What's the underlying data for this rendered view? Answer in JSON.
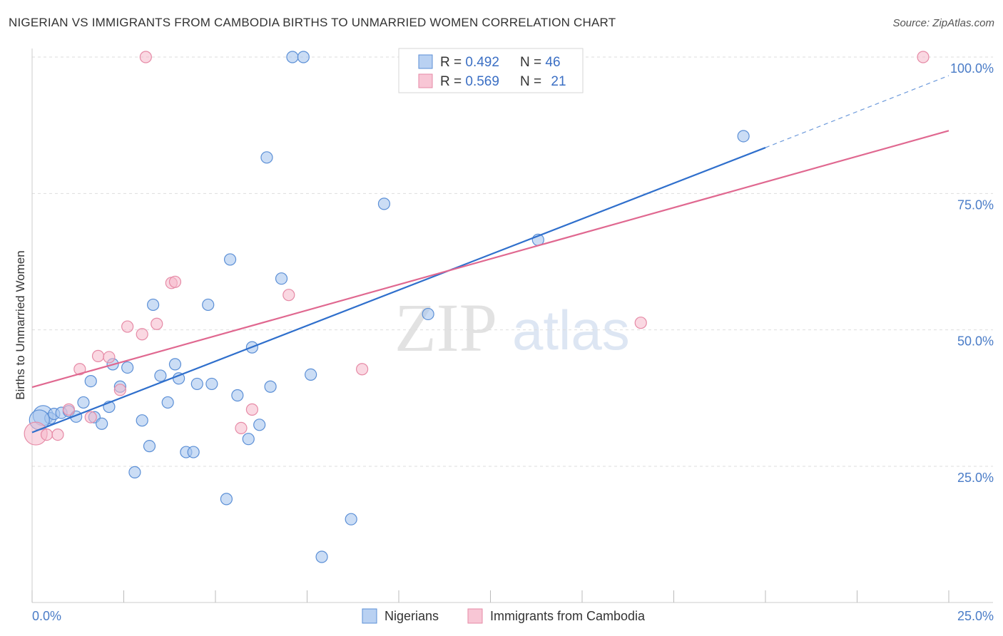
{
  "title": "NIGERIAN VS IMMIGRANTS FROM CAMBODIA BIRTHS TO UNMARRIED WOMEN CORRELATION CHART",
  "source": "Source: ZipAtlas.com",
  "watermark": {
    "zip": "ZIP",
    "atlas": "atlas"
  },
  "legend": {
    "rows": [
      {
        "r_label": "R = ",
        "r_value": "0.492",
        "n_label": "N = ",
        "n_value": "46"
      },
      {
        "r_label": "R = ",
        "r_value": "0.569",
        "n_label": "N = ",
        "n_value": "21"
      }
    ]
  },
  "bottom_legend": [
    "Nigerians",
    "Immigrants from Cambodia"
  ],
  "colors": {
    "blue_fill": "#a9c7ef",
    "blue_stroke": "#5b8fd6",
    "blue_line": "#2f6fcc",
    "pink_fill": "#f5b8cb",
    "pink_stroke": "#e68aa6",
    "pink_line": "#e06890",
    "tick": "#4a7cc7",
    "grid": "#dddddd"
  },
  "chart_data": {
    "type": "scatter",
    "title": "NIGERIAN VS IMMIGRANTS FROM CAMBODIA BIRTHS TO UNMARRIED WOMEN CORRELATION CHART",
    "xlabel": "",
    "ylabel": "Births to Unmarried Women",
    "xlim": [
      0,
      25
    ],
    "ylim": [
      0,
      100
    ],
    "x_ticks": [
      "0.0%",
      "25.0%"
    ],
    "y_ticks": [
      "25.0%",
      "50.0%",
      "75.0%",
      "100.0%"
    ],
    "grid": true,
    "legend_position": "top-center",
    "series": [
      {
        "name": "Nigerians",
        "r": 0.492,
        "n": 46,
        "trend": {
          "x1": 0,
          "y1": 31.2,
          "x2": 20,
          "y2": 83.4,
          "dashed_to_x": 25,
          "dashed_to_y": 96.6
        },
        "points": [
          [
            0.3,
            34.3
          ],
          [
            0.5,
            33.8
          ],
          [
            0.6,
            34.6
          ],
          [
            0.8,
            34.8
          ],
          [
            1.0,
            35.1
          ],
          [
            1.2,
            34.1
          ],
          [
            1.4,
            36.7
          ],
          [
            1.6,
            40.6
          ],
          [
            1.7,
            34.0
          ],
          [
            1.9,
            32.8
          ],
          [
            2.1,
            35.9
          ],
          [
            2.2,
            43.7
          ],
          [
            2.4,
            39.6
          ],
          [
            2.6,
            43.1
          ],
          [
            2.8,
            23.9
          ],
          [
            3.0,
            33.4
          ],
          [
            3.2,
            28.7
          ],
          [
            3.3,
            54.6
          ],
          [
            3.5,
            41.6
          ],
          [
            3.7,
            36.7
          ],
          [
            3.9,
            43.7
          ],
          [
            4.0,
            41.1
          ],
          [
            4.2,
            27.6
          ],
          [
            4.4,
            27.6
          ],
          [
            4.5,
            40.1
          ],
          [
            4.8,
            54.6
          ],
          [
            4.9,
            40.1
          ],
          [
            5.3,
            19.0
          ],
          [
            5.4,
            62.9
          ],
          [
            5.6,
            38.0
          ],
          [
            5.9,
            30.0
          ],
          [
            6.0,
            46.8
          ],
          [
            6.2,
            32.6
          ],
          [
            6.4,
            81.6
          ],
          [
            6.5,
            39.6
          ],
          [
            6.8,
            59.4
          ],
          [
            7.1,
            100.0
          ],
          [
            7.4,
            100.0
          ],
          [
            7.6,
            41.8
          ],
          [
            7.9,
            8.4
          ],
          [
            8.7,
            15.3
          ],
          [
            9.6,
            73.1
          ],
          [
            10.8,
            52.9
          ],
          [
            13.8,
            66.5
          ],
          [
            19.4,
            85.5
          ],
          [
            0.2,
            33.5
          ]
        ]
      },
      {
        "name": "Immigrants from Cambodia",
        "r": 0.569,
        "n": 21,
        "trend": {
          "x1": 0,
          "y1": 39.5,
          "x2": 25,
          "y2": 86.5
        },
        "points": [
          [
            0.1,
            31.0
          ],
          [
            0.4,
            30.8
          ],
          [
            0.7,
            30.8
          ],
          [
            1.0,
            35.4
          ],
          [
            1.3,
            42.8
          ],
          [
            1.6,
            34.0
          ],
          [
            1.8,
            45.2
          ],
          [
            2.1,
            45.0
          ],
          [
            2.4,
            39.0
          ],
          [
            2.6,
            50.6
          ],
          [
            3.0,
            49.2
          ],
          [
            3.1,
            100.0
          ],
          [
            3.4,
            51.1
          ],
          [
            3.8,
            58.6
          ],
          [
            3.9,
            58.8
          ],
          [
            5.7,
            32.0
          ],
          [
            6.0,
            35.4
          ],
          [
            7.0,
            56.4
          ],
          [
            9.0,
            42.8
          ],
          [
            16.6,
            51.3
          ],
          [
            24.3,
            100.0
          ]
        ]
      }
    ]
  }
}
